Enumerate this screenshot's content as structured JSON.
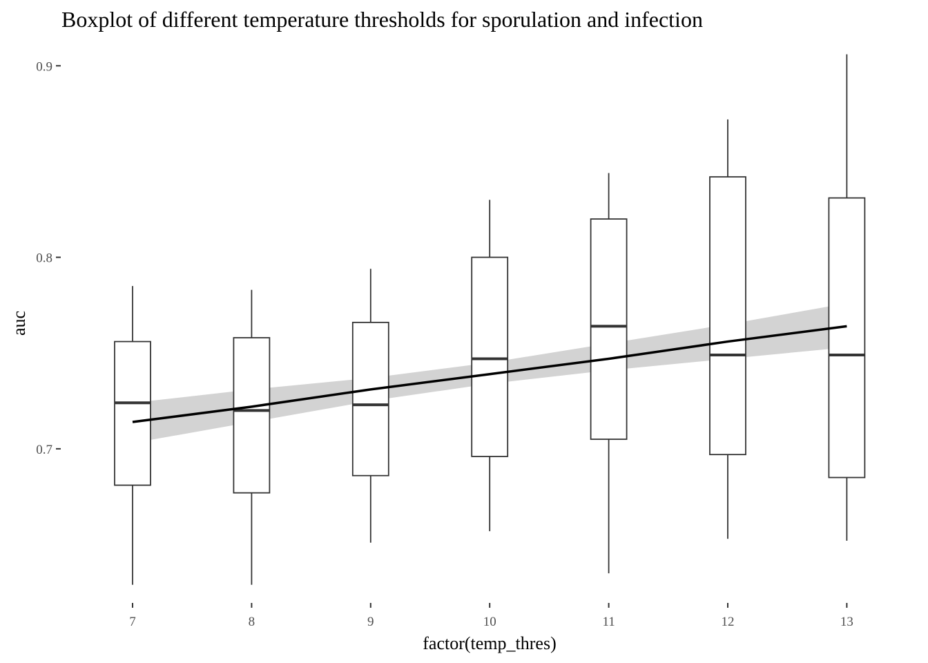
{
  "chart_data": {
    "type": "box",
    "title": "Boxplot of different temperature thresholds for sporulation and infection",
    "xlabel": "factor(temp_thres)",
    "ylabel": "auc",
    "ylim": [
      0.617,
      0.912
    ],
    "yticks": [
      0.7,
      0.8,
      0.9
    ],
    "ytick_labels": [
      "0.7",
      "0.8",
      "0.9"
    ],
    "grid": false,
    "categories": [
      "7",
      "8",
      "9",
      "10",
      "11",
      "12",
      "13"
    ],
    "boxes": [
      {
        "category": "7",
        "min": 0.629,
        "q1": 0.681,
        "median": 0.724,
        "q3": 0.756,
        "max": 0.785
      },
      {
        "category": "8",
        "min": 0.629,
        "q1": 0.677,
        "median": 0.72,
        "q3": 0.758,
        "max": 0.783
      },
      {
        "category": "9",
        "min": 0.651,
        "q1": 0.686,
        "median": 0.723,
        "q3": 0.766,
        "max": 0.794
      },
      {
        "category": "10",
        "min": 0.657,
        "q1": 0.696,
        "median": 0.747,
        "q3": 0.8,
        "max": 0.83
      },
      {
        "category": "11",
        "min": 0.635,
        "q1": 0.705,
        "median": 0.764,
        "q3": 0.82,
        "max": 0.844
      },
      {
        "category": "12",
        "min": 0.653,
        "q1": 0.697,
        "median": 0.749,
        "q3": 0.842,
        "max": 0.872
      },
      {
        "category": "13",
        "min": 0.652,
        "q1": 0.685,
        "median": 0.749,
        "q3": 0.831,
        "max": 0.906
      }
    ],
    "trend_line": {
      "method": "linear",
      "values": [
        0.714,
        0.722,
        0.731,
        0.739,
        0.747,
        0.756,
        0.764
      ],
      "ci_lower": [
        0.703,
        0.714,
        0.725,
        0.734,
        0.741,
        0.747,
        0.753
      ],
      "ci_upper": [
        0.724,
        0.731,
        0.737,
        0.745,
        0.755,
        0.765,
        0.776
      ]
    }
  }
}
